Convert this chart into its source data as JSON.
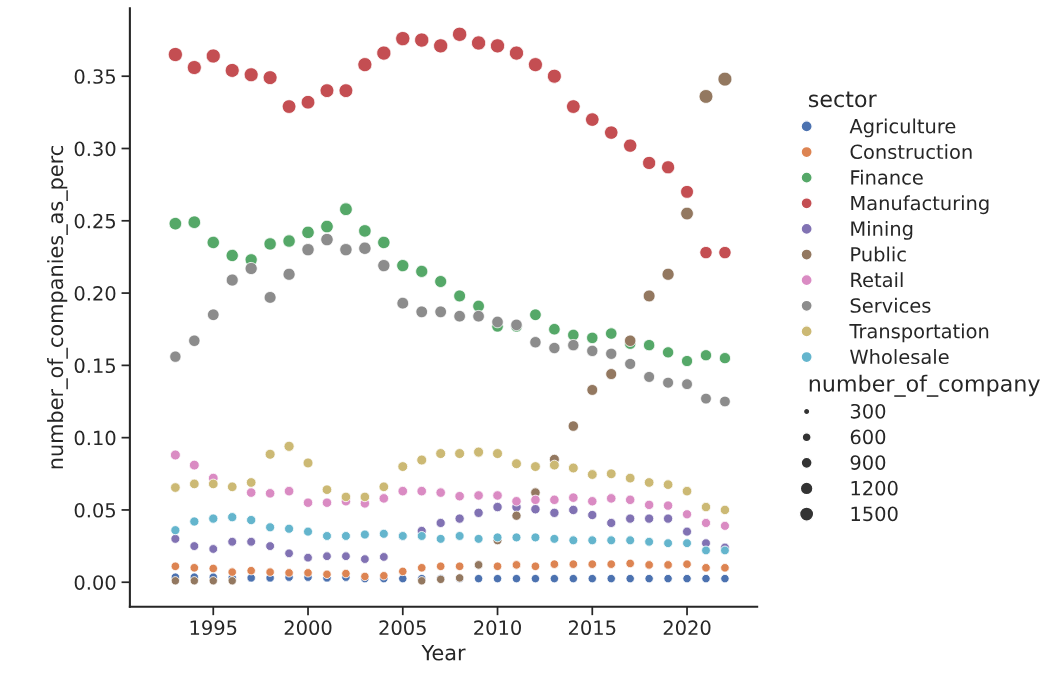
{
  "chart_data": {
    "type": "bubble",
    "xlabel": "Year",
    "ylabel": "number_of_companies_as_perc",
    "legend_title": [
      "sector",
      "number_of_company"
    ],
    "legend": "right",
    "x": [
      1993,
      1994,
      1995,
      1996,
      1997,
      1998,
      1999,
      2000,
      2001,
      2002,
      2003,
      2004,
      2005,
      2006,
      2007,
      2008,
      2009,
      2010,
      2011,
      2012,
      2013,
      2014,
      2015,
      2016,
      2017,
      2018,
      2019,
      2020,
      2021,
      2022
    ],
    "xlim": [
      1990.6,
      2023.7
    ],
    "xticks": [
      1995,
      2000,
      2005,
      2010,
      2015,
      2020
    ],
    "ylim": [
      -0.017,
      0.397
    ],
    "yticks": [
      {
        "value": 0,
        "label": "0.00"
      },
      {
        "value": 0.05,
        "label": "0.05"
      },
      {
        "value": 0.1,
        "label": "0.10"
      },
      {
        "value": 0.15,
        "label": "0.15"
      },
      {
        "value": 0.2,
        "label": "0.20"
      },
      {
        "value": 0.25,
        "label": "0.25"
      },
      {
        "value": 0.3,
        "label": "0.30"
      },
      {
        "value": 0.35,
        "label": "0.35"
      }
    ],
    "size_legend": [
      300,
      600,
      900,
      1200,
      1500
    ],
    "series": [
      {
        "name": "Agriculture",
        "color": "#4c72b0",
        "values": [
          0.0035,
          0.0035,
          0.0035,
          0.003,
          0.003,
          0.003,
          0.0035,
          0.0035,
          0.003,
          0.0035,
          0.0025,
          0.0025,
          0.0025,
          0.0025,
          0.0025,
          0.0025,
          0.0025,
          0.0025,
          0.0025,
          0.0025,
          0.0025,
          0.0025,
          0.0025,
          0.0025,
          0.0025,
          0.0025,
          0.0025,
          0.0025,
          0.0025,
          0.0025
        ],
        "sizes": [
          530,
          530,
          530,
          530,
          530,
          530,
          530,
          530,
          530,
          530,
          530,
          530,
          530,
          530,
          530,
          530,
          530,
          530,
          530,
          530,
          530,
          530,
          530,
          530,
          530,
          530,
          530,
          530,
          530,
          530
        ]
      },
      {
        "name": "Construction",
        "color": "#dd8452",
        "values": [
          0.011,
          0.01,
          0.0095,
          0.007,
          0.008,
          0.007,
          0.0065,
          0.0065,
          0.0055,
          0.006,
          0.004,
          0.0045,
          0.0075,
          0.01,
          0.011,
          0.011,
          null,
          0.011,
          0.012,
          0.011,
          0.0125,
          0.0125,
          0.0125,
          0.0125,
          0.013,
          0.012,
          0.012,
          0.0125,
          0.01,
          0.01
        ],
        "sizes": [
          550,
          550,
          550,
          540,
          540,
          540,
          540,
          540,
          540,
          540,
          530,
          530,
          540,
          550,
          550,
          550,
          null,
          550,
          550,
          550,
          550,
          550,
          550,
          550,
          550,
          550,
          550,
          550,
          550,
          550
        ]
      },
      {
        "name": "Finance",
        "color": "#55a868",
        "values": [
          0.248,
          0.249,
          0.235,
          0.226,
          0.223,
          0.234,
          0.236,
          0.242,
          0.246,
          0.258,
          0.243,
          0.235,
          0.219,
          0.215,
          0.208,
          0.198,
          0.191,
          0.177,
          0.177,
          0.185,
          0.175,
          0.171,
          0.169,
          0.172,
          0.165,
          0.164,
          0.159,
          0.153,
          0.157,
          0.155
        ],
        "sizes": [
          1180,
          1180,
          1140,
          1120,
          1110,
          1140,
          1150,
          1160,
          1180,
          1210,
          1170,
          1140,
          1110,
          1090,
          1070,
          1050,
          1030,
          990,
          990,
          1010,
          990,
          980,
          970,
          980,
          960,
          960,
          940,
          930,
          940,
          940
        ]
      },
      {
        "name": "Manufacturing",
        "color": "#c44e52",
        "values": [
          0.365,
          0.356,
          0.364,
          0.354,
          0.351,
          0.349,
          0.329,
          0.332,
          0.34,
          0.34,
          0.358,
          0.366,
          0.376,
          0.375,
          0.371,
          0.379,
          0.373,
          0.371,
          0.366,
          0.358,
          0.35,
          0.329,
          0.32,
          0.311,
          0.302,
          0.29,
          0.287,
          0.27,
          0.228,
          0.228
        ],
        "sizes": [
          1500,
          1470,
          1490,
          1460,
          1460,
          1450,
          1400,
          1400,
          1420,
          1420,
          1480,
          1500,
          1520,
          1520,
          1510,
          1530,
          1510,
          1510,
          1500,
          1480,
          1460,
          1400,
          1370,
          1350,
          1330,
          1290,
          1290,
          1240,
          1130,
          1130
        ]
      },
      {
        "name": "Mining",
        "color": "#8172b3",
        "values": [
          0.03,
          0.025,
          0.023,
          0.028,
          0.028,
          0.025,
          0.02,
          0.017,
          0.018,
          0.018,
          0.016,
          0.0175,
          0.032,
          0.0355,
          0.041,
          0.044,
          0.048,
          0.052,
          0.052,
          0.0505,
          0.048,
          0.05,
          0.0465,
          0.041,
          0.044,
          0.044,
          0.044,
          0.035,
          0.027,
          0.024
        ],
        "sizes": [
          600,
          590,
          580,
          590,
          590,
          590,
          570,
          570,
          570,
          570,
          570,
          570,
          600,
          620,
          630,
          640,
          650,
          660,
          660,
          660,
          650,
          660,
          640,
          630,
          640,
          640,
          640,
          610,
          590,
          590
        ]
      },
      {
        "name": "Public",
        "color": "#937860",
        "values": [
          0.001,
          0.001,
          0.001,
          0.001,
          null,
          null,
          null,
          null,
          null,
          null,
          null,
          null,
          null,
          0.001,
          0.002,
          0.003,
          0.012,
          0.029,
          0.046,
          0.062,
          0.085,
          0.108,
          0.133,
          0.144,
          0.167,
          0.198,
          0.213,
          0.255,
          0.336,
          0.348
        ],
        "sizes": [
          520,
          520,
          520,
          520,
          null,
          null,
          null,
          null,
          null,
          null,
          null,
          null,
          null,
          520,
          530,
          530,
          550,
          600,
          640,
          680,
          750,
          810,
          880,
          900,
          970,
          1050,
          1090,
          1200,
          1420,
          1450
        ]
      },
      {
        "name": "Retail",
        "color": "#da8bc3",
        "values": [
          0.088,
          0.081,
          0.072,
          null,
          0.062,
          0.0615,
          0.063,
          0.055,
          0.055,
          0.056,
          0.0545,
          0.058,
          0.063,
          0.063,
          0.062,
          0.0595,
          0.06,
          0.06,
          0.056,
          0.057,
          0.057,
          0.0585,
          0.056,
          0.058,
          0.057,
          0.0535,
          0.053,
          0.047,
          0.041,
          0.039
        ],
        "sizes": [
          750,
          730,
          710,
          null,
          680,
          680,
          690,
          670,
          670,
          670,
          660,
          680,
          690,
          690,
          680,
          680,
          680,
          680,
          670,
          670,
          670,
          680,
          670,
          680,
          670,
          660,
          660,
          640,
          630,
          620
        ]
      },
      {
        "name": "Services",
        "color": "#8c8c8c",
        "values": [
          0.156,
          0.167,
          0.185,
          0.209,
          0.217,
          0.197,
          0.213,
          0.23,
          0.237,
          0.23,
          0.231,
          0.219,
          0.193,
          0.187,
          0.187,
          0.184,
          0.184,
          0.18,
          0.178,
          0.166,
          0.162,
          0.164,
          0.16,
          0.158,
          0.151,
          0.142,
          0.138,
          0.137,
          0.127,
          0.125
        ],
        "sizes": [
          940,
          970,
          1010,
          1080,
          1100,
          1050,
          1090,
          1130,
          1150,
          1130,
          1140,
          1110,
          1030,
          1020,
          1020,
          1010,
          1010,
          1000,
          990,
          960,
          950,
          960,
          950,
          940,
          920,
          900,
          890,
          880,
          860,
          850
        ]
      },
      {
        "name": "Transportation",
        "color": "#ccb974",
        "values": [
          0.0655,
          0.068,
          0.068,
          0.066,
          0.069,
          0.0885,
          0.094,
          0.0825,
          0.064,
          0.059,
          0.059,
          0.066,
          0.08,
          0.0845,
          0.089,
          0.089,
          0.09,
          0.089,
          0.082,
          0.08,
          0.081,
          0.079,
          0.0745,
          0.075,
          0.072,
          0.069,
          0.0675,
          0.063,
          0.052,
          0.05
        ],
        "sizes": [
          700,
          700,
          700,
          700,
          700,
          750,
          770,
          740,
          690,
          680,
          680,
          700,
          730,
          750,
          750,
          750,
          760,
          750,
          740,
          730,
          730,
          730,
          720,
          720,
          710,
          700,
          700,
          690,
          660,
          660
        ]
      },
      {
        "name": "Wholesale",
        "color": "#64b5cd",
        "values": [
          0.036,
          0.042,
          0.044,
          0.045,
          0.043,
          0.038,
          0.037,
          0.035,
          0.032,
          0.032,
          0.033,
          0.0335,
          0.032,
          0.032,
          0.03,
          0.032,
          0.03,
          0.031,
          0.031,
          0.031,
          0.03,
          0.029,
          0.029,
          0.029,
          0.029,
          0.028,
          0.027,
          0.027,
          0.022,
          0.022
        ],
        "sizes": [
          620,
          630,
          640,
          640,
          640,
          620,
          620,
          610,
          600,
          600,
          610,
          610,
          600,
          600,
          600,
          600,
          600,
          600,
          600,
          600,
          600,
          600,
          600,
          600,
          600,
          590,
          590,
          590,
          580,
          580
        ]
      }
    ]
  }
}
